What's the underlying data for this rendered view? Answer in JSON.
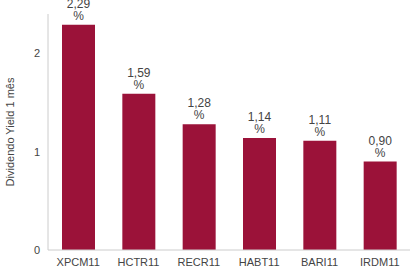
{
  "chart_data": {
    "type": "bar",
    "ylabel": "Dividendo Yield 1 mês",
    "categories": [
      "XPCM11",
      "HCTR11",
      "RECR11",
      "HABT11",
      "BARI11",
      "IRDM11"
    ],
    "values": [
      2.29,
      1.59,
      1.28,
      1.14,
      1.11,
      0.9
    ],
    "value_labels": [
      "2,29 %",
      "1,59 %",
      "1,28 %",
      "1,14 %",
      "1,11 %",
      "0,90 %"
    ],
    "color": "#9b1239",
    "ylim": [
      0,
      2.4
    ],
    "yticks": [
      0,
      1,
      2
    ],
    "grid": false,
    "data_labels": true
  }
}
